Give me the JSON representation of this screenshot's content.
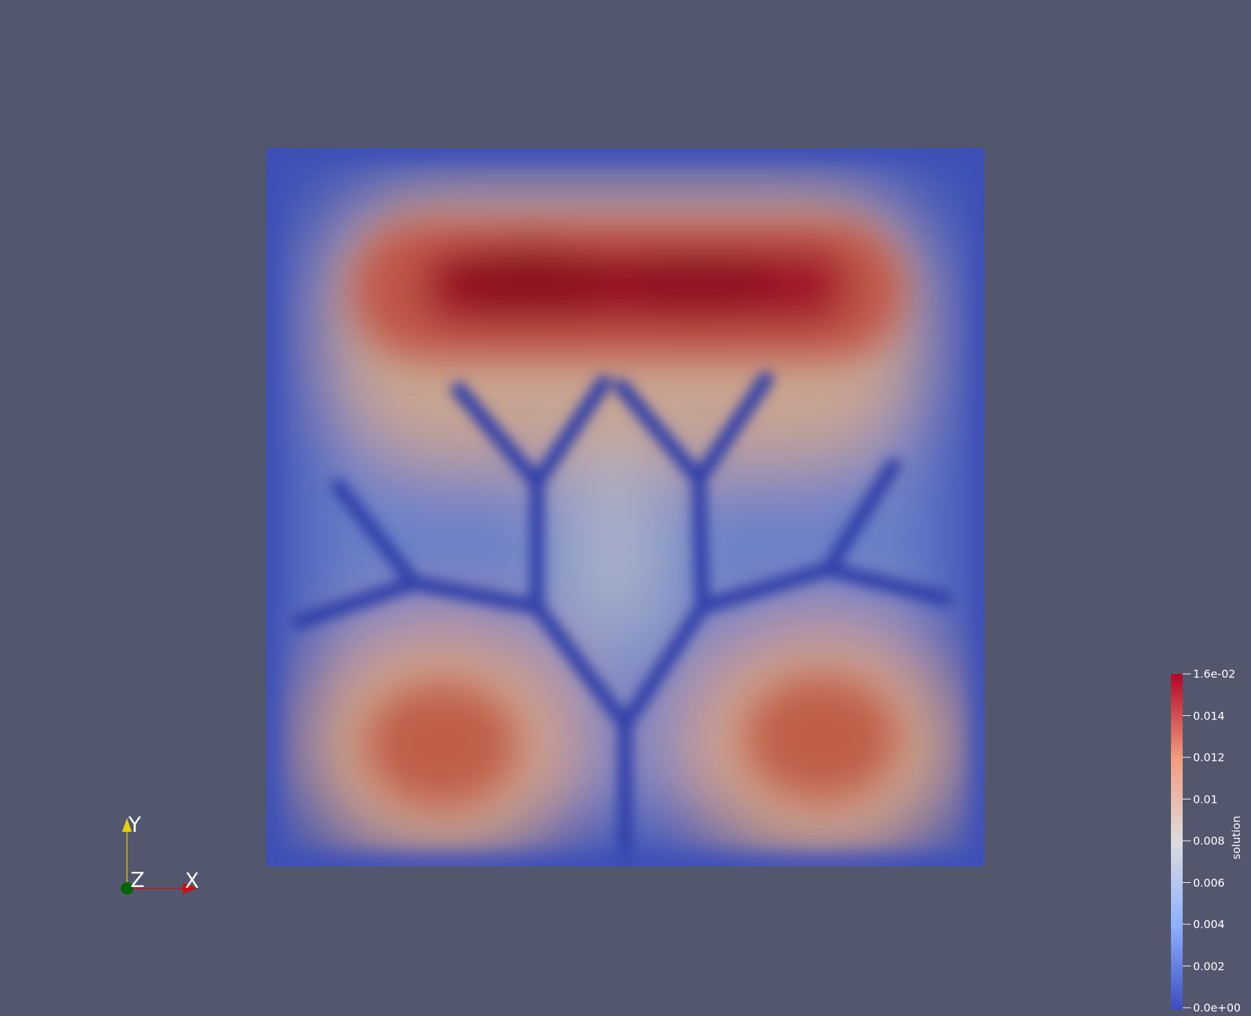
{
  "scalar_bar": {
    "title": "solution",
    "ticks": [
      {
        "value": 0.016,
        "label": "1.6e-02"
      },
      {
        "value": 0.014,
        "label": "0.014"
      },
      {
        "value": 0.012,
        "label": "0.012"
      },
      {
        "value": 0.01,
        "label": "0.01"
      },
      {
        "value": 0.008,
        "label": "0.008"
      },
      {
        "value": 0.006,
        "label": "0.006"
      },
      {
        "value": 0.004,
        "label": "0.004"
      },
      {
        "value": 0.002,
        "label": "0.002"
      },
      {
        "value": 0.0,
        "label": "0.0e+00"
      }
    ],
    "range": [
      0.0,
      0.016
    ],
    "colormap": "Cool to Warm",
    "colors": {
      "low": "#3b4cc0",
      "mid": "#dddddd",
      "high": "#b40426",
      "max": "#8b0a1f"
    }
  },
  "orientation_axes": {
    "x_label": "X",
    "y_label": "Y",
    "z_label": "Z",
    "colors": {
      "x": "#cc1111",
      "y": "#e0c000",
      "z": "#006400"
    }
  },
  "background_color": "#52576e"
}
